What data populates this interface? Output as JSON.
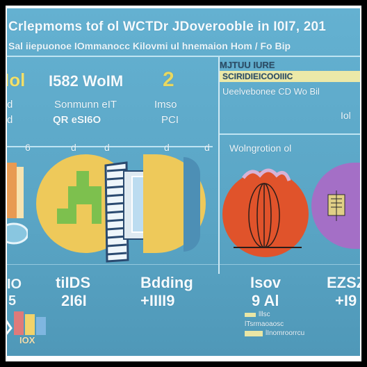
{
  "header": {
    "title": "Crlepmoms tof ol WCTDr JDoverooble in I0I7, 201",
    "subtitle": "Sal iiepuonoe IOmmanocc Kilovmi ul hnemaion Hom / Fo Bip"
  },
  "left_section": {
    "stat_main": "I582 WoIM",
    "stat_badge": "2",
    "label_a": "Sonmunn eIT",
    "label_b": "QR eSI6O",
    "label_c": "Imso",
    "label_d": "PCI",
    "tick_a": "6",
    "tick_b": "d",
    "tick_c": "d",
    "tick_d": "d",
    "tick_e": "d",
    "bottom_a": "tiIDS",
    "bottom_b": "2I6I",
    "bottom_c": "Bdding",
    "bottom_d": "+IIII9",
    "bottom_left_a": "IO",
    "bottom_left_b": "5",
    "logo_text": "IOX"
  },
  "right_section": {
    "header_a": "MJTUU IURE",
    "header_b": "SCIRIDIEICOOIIIC",
    "header_c": "Ueelvebonee CD Wo Bil",
    "header_d": "Iol",
    "mid_label": "Wolngrotion ol",
    "bottom_a": "Isov",
    "bottom_b": "9 Al",
    "bottom_c": "EZSZ",
    "bottom_d": "+I9",
    "legend_line_a": "lllsc",
    "legend_line_b": "lTsrmaoaosc",
    "legend_line_c": "lInomroorrcu"
  },
  "colors": {
    "background": "#5ea9c9",
    "yellow_circle": "#eec95a",
    "green_shape": "#7dc04e",
    "red_circle": "#e0532b",
    "purple_circle": "#a46fc6",
    "accent_yellow": "#ece9a8"
  },
  "icons": [
    "phone-icon",
    "globe-icon",
    "document-icon",
    "cylinder-icon"
  ]
}
